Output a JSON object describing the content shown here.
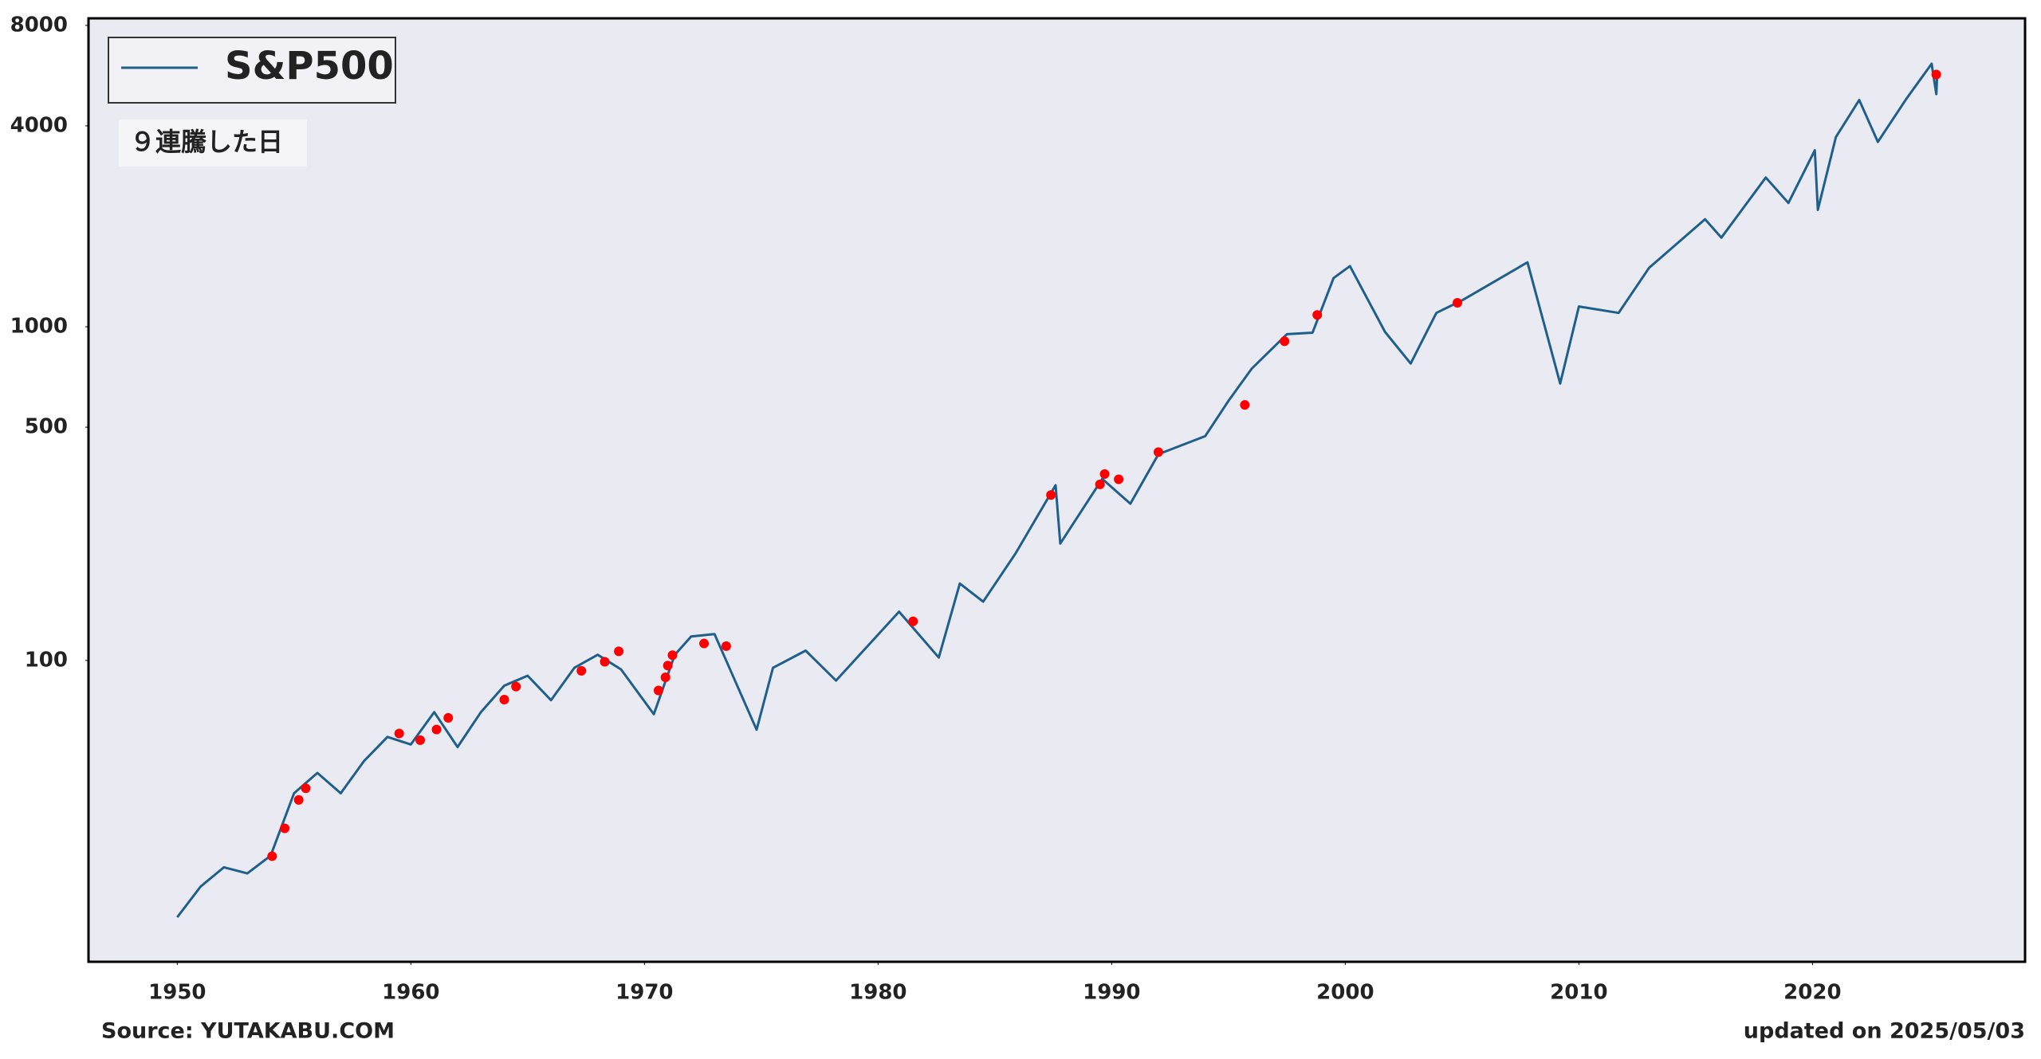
{
  "chart_data": {
    "type": "line",
    "log_y": true,
    "series": [
      {
        "name": "S&P500",
        "color": "#1f5f8b",
        "x": [
          1950,
          1951,
          1952,
          1953,
          1954,
          1955,
          1956,
          1957,
          1958,
          1959,
          1960,
          1961,
          1962,
          1963,
          1964,
          1965,
          1966,
          1967,
          1968,
          1969,
          1970.4,
          1971.3,
          1972,
          1973,
          1974.8,
          1975.5,
          1976.9,
          1978.2,
          1980.9,
          1982.6,
          1983.5,
          1984.5,
          1985.9,
          1987.6,
          1987.8,
          1989.6,
          1990.8,
          1992,
          1994,
          1995,
          1996,
          1997.5,
          1998.6,
          1999.5,
          2000.2,
          2001.7,
          2002.8,
          2003.9,
          2005,
          2007.8,
          2009.2,
          2010,
          2011.7,
          2013,
          2015.4,
          2016.1,
          2018,
          2018.97,
          2020.1,
          2020.23,
          2021,
          2022,
          2022.8,
          2024,
          2025.1,
          2025.3,
          2025.34
        ],
        "values": [
          17,
          21,
          24,
          23,
          26,
          40,
          46,
          40,
          50,
          59,
          56,
          70,
          55,
          70,
          84,
          90,
          76,
          95,
          104,
          94,
          69,
          104,
          118,
          120,
          62,
          95,
          107,
          87,
          140,
          102,
          170,
          150,
          210,
          335,
          224,
          350,
          295,
          415,
          470,
          600,
          750,
          950,
          960,
          1400,
          1520,
          965,
          776,
          1100,
          1200,
          1560,
          676,
          1150,
          1100,
          1500,
          2100,
          1850,
          2800,
          2350,
          3380,
          2240,
          3700,
          4780,
          3580,
          4800,
          6140,
          4980,
          5690
        ]
      }
    ],
    "markers": {
      "color": "#ff0000",
      "x": [
        1954.06,
        1954.6,
        1955.2,
        1955.5,
        1959.5,
        1960.4,
        1961.1,
        1961.6,
        1964.0,
        1964.5,
        1967.3,
        1968.3,
        1968.9,
        1970.6,
        1970.9,
        1971.0,
        1971.2,
        1972.55,
        1973.5,
        1981.5,
        1987.4,
        1989.5,
        1989.7,
        1990.3,
        1992.0,
        1995.7,
        1997.4,
        1998.8,
        2004.8,
        2025.3
      ],
      "values": [
        25.9,
        31.4,
        38.2,
        41.4,
        60.4,
        57.7,
        62.1,
        67.3,
        76.3,
        83.5,
        93.1,
        99.1,
        106.5,
        81.3,
        89.0,
        96.5,
        103.7,
        112.4,
        110.4,
        131,
        313,
        337,
        362,
        349,
        421,
        583,
        905,
        1085,
        1180,
        5700
      ]
    },
    "annotation": "９連騰した日",
    "xlim": [
      1946.2,
      2029.1
    ],
    "xticks": [
      1950,
      1960,
      1970,
      1980,
      1990,
      2000,
      2010,
      2020
    ],
    "ylim": [
      12.5,
      8400
    ],
    "yticks": [
      100,
      500,
      1000,
      4000,
      8000
    ],
    "source": "Source: YUTAKABU.COM",
    "updated": "updated on 2025/05/03"
  }
}
